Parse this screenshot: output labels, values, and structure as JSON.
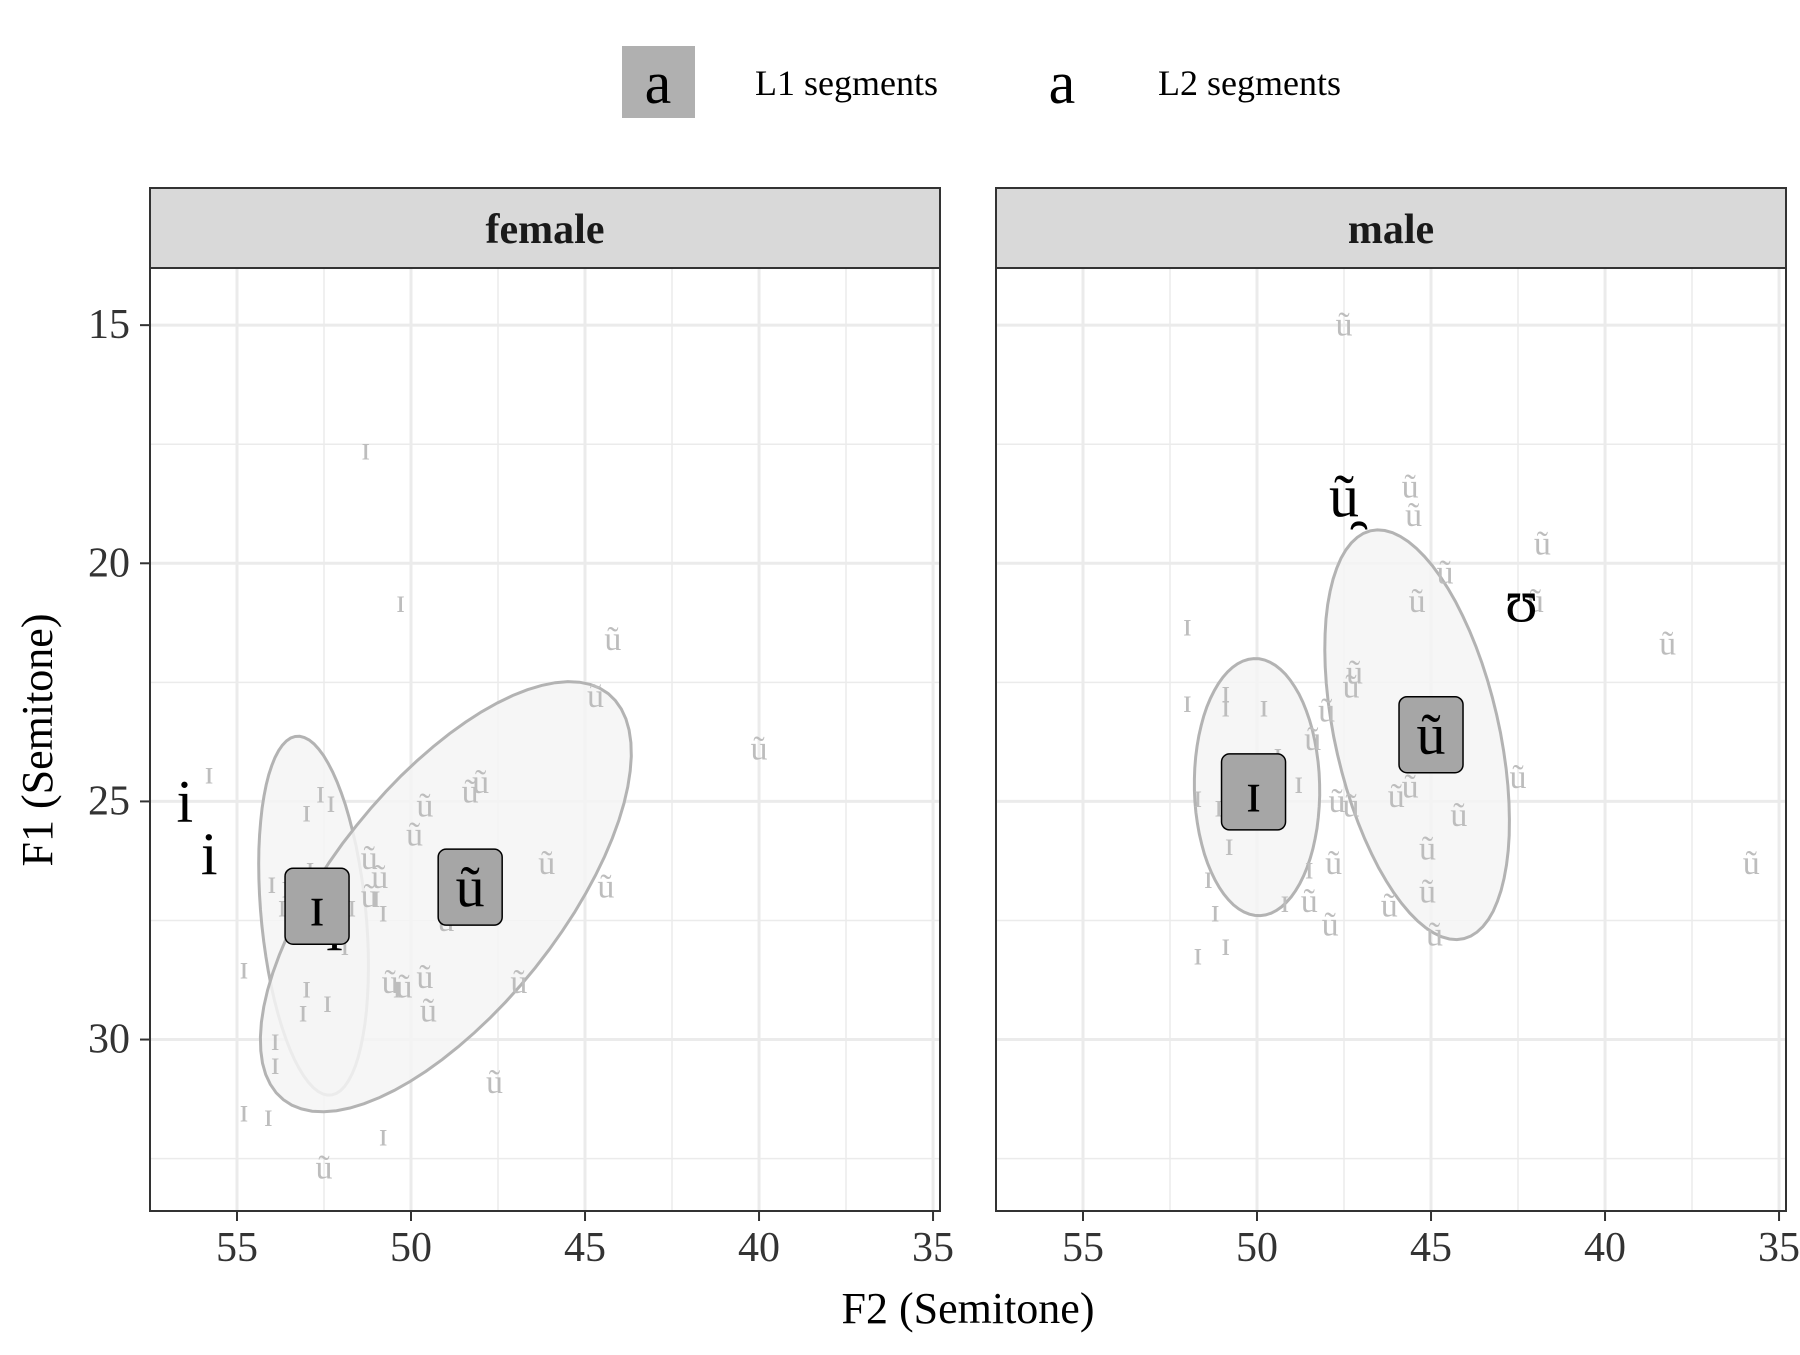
{
  "legend": {
    "key_glyph": "a",
    "l1_label": "L1 segments",
    "l2_label": "L2 segments",
    "l1_fill": "#b0b0b0"
  },
  "colors": {
    "strip_bg": "#d9d9d9",
    "grid": "#ebebeb",
    "points": "#bdbdbd",
    "ellipse_stroke": "#b3b3b3",
    "ellipse_fill": "#f5f5f5",
    "label_fill": "#a6a6a6"
  },
  "chart_data": {
    "type": "scatter",
    "xlabel": "F2 (Semitone)",
    "ylabel": "F1 (Semitone)",
    "x_reversed": true,
    "y_reversed": true,
    "xlim": [
      57.5,
      34.8
    ],
    "ylim": [
      13.8,
      33.6
    ],
    "xticks": [
      55,
      50,
      45,
      40,
      35
    ],
    "yticks": [
      15,
      20,
      25,
      30
    ],
    "grid": true,
    "legend_position": "top",
    "panels": [
      {
        "name": "female",
        "ellipses": [
          {
            "vowel": "ɪ",
            "cx": 52.8,
            "cy": 27.4,
            "rx": 3.8,
            "ry": 1.5,
            "angle": 82
          },
          {
            "vowel": "ũ",
            "cx": 49.0,
            "cy": 27.0,
            "rx": 6.4,
            "ry": 2.8,
            "angle": -38
          }
        ],
        "l1_means": [
          {
            "vowel": "ɪ",
            "x": 52.7,
            "y": 27.2
          },
          {
            "vowel": "ũ",
            "x": 48.3,
            "y": 26.8
          }
        ],
        "l2_means": [
          {
            "vowel": "i",
            "x": 56.5,
            "y": 25.0
          },
          {
            "vowel": "i",
            "x": 55.8,
            "y": 26.1
          },
          {
            "vowel": "i",
            "x": 52.2,
            "y": 27.7
          }
        ],
        "points": [
          {
            "v": "ɪ",
            "x": 51.3,
            "y": 17.6
          },
          {
            "v": "ɪ",
            "x": 50.3,
            "y": 20.8
          },
          {
            "v": "ɪ",
            "x": 55.8,
            "y": 24.4
          },
          {
            "v": "ɪ",
            "x": 53.0,
            "y": 25.2
          },
          {
            "v": "ɪ",
            "x": 52.6,
            "y": 24.8
          },
          {
            "v": "ɪ",
            "x": 52.3,
            "y": 25.0
          },
          {
            "v": "ɪ",
            "x": 54.0,
            "y": 26.7
          },
          {
            "v": "ɪ",
            "x": 53.6,
            "y": 26.8
          },
          {
            "v": "ɪ",
            "x": 52.9,
            "y": 26.4
          },
          {
            "v": "ɪ",
            "x": 53.7,
            "y": 27.2
          },
          {
            "v": "ɪ",
            "x": 51.7,
            "y": 27.2
          },
          {
            "v": "ɪ",
            "x": 51.0,
            "y": 27.0
          },
          {
            "v": "ɪ",
            "x": 50.8,
            "y": 27.3
          },
          {
            "v": "ɪ",
            "x": 54.8,
            "y": 28.5
          },
          {
            "v": "ɪ",
            "x": 51.9,
            "y": 28.0
          },
          {
            "v": "ɪ",
            "x": 53.0,
            "y": 28.9
          },
          {
            "v": "ɪ",
            "x": 52.4,
            "y": 29.2
          },
          {
            "v": "ɪ",
            "x": 53.1,
            "y": 29.4
          },
          {
            "v": "ɪ",
            "x": 50.4,
            "y": 28.9
          },
          {
            "v": "ɪ",
            "x": 53.9,
            "y": 30.0
          },
          {
            "v": "ɪ",
            "x": 53.9,
            "y": 30.5
          },
          {
            "v": "ɪ",
            "x": 54.8,
            "y": 31.5
          },
          {
            "v": "ɪ",
            "x": 54.1,
            "y": 31.6
          },
          {
            "v": "ɪ",
            "x": 50.8,
            "y": 32.0
          },
          {
            "v": "ũ",
            "x": 44.2,
            "y": 21.6
          },
          {
            "v": "ũ",
            "x": 44.7,
            "y": 22.8
          },
          {
            "v": "ũ",
            "x": 40.0,
            "y": 23.9
          },
          {
            "v": "ũ",
            "x": 48.0,
            "y": 24.6
          },
          {
            "v": "ũ",
            "x": 48.3,
            "y": 24.8
          },
          {
            "v": "ũ",
            "x": 49.6,
            "y": 25.1
          },
          {
            "v": "ũ",
            "x": 49.9,
            "y": 25.7
          },
          {
            "v": "ũ",
            "x": 51.2,
            "y": 26.2
          },
          {
            "v": "ũ",
            "x": 50.9,
            "y": 26.6
          },
          {
            "v": "ũ",
            "x": 51.2,
            "y": 27.0
          },
          {
            "v": "ũ",
            "x": 46.1,
            "y": 26.3
          },
          {
            "v": "ũ",
            "x": 44.4,
            "y": 26.8
          },
          {
            "v": "ũ",
            "x": 49.0,
            "y": 27.5
          },
          {
            "v": "ũ",
            "x": 50.6,
            "y": 28.8
          },
          {
            "v": "ũ",
            "x": 50.2,
            "y": 28.9
          },
          {
            "v": "ũ",
            "x": 49.6,
            "y": 28.7
          },
          {
            "v": "ũ",
            "x": 46.9,
            "y": 28.8
          },
          {
            "v": "ũ",
            "x": 49.5,
            "y": 29.4
          },
          {
            "v": "ũ",
            "x": 47.6,
            "y": 30.9
          },
          {
            "v": "ũ",
            "x": 52.5,
            "y": 32.7
          }
        ]
      },
      {
        "name": "male",
        "ellipses": [
          {
            "vowel": "ɪ",
            "cx": 50.0,
            "cy": 24.7,
            "rx": 2.7,
            "ry": 1.8,
            "angle": 88
          },
          {
            "vowel": "ũ",
            "cx": 45.4,
            "cy": 23.6,
            "rx": 4.5,
            "ry": 2.3,
            "angle": 70
          }
        ],
        "l1_means": [
          {
            "vowel": "ɪ",
            "x": 50.1,
            "y": 24.8
          },
          {
            "vowel": "ũ",
            "x": 45.0,
            "y": 23.6
          }
        ],
        "l2_means": [
          {
            "vowel": "ũ̯",
            "x": 47.5,
            "y": 18.6
          },
          {
            "vowel": "ʊ",
            "x": 42.4,
            "y": 20.8
          }
        ],
        "points": [
          {
            "v": "ɪ",
            "x": 52.0,
            "y": 21.3
          },
          {
            "v": "ɪ",
            "x": 52.0,
            "y": 22.9
          },
          {
            "v": "ɪ",
            "x": 50.9,
            "y": 22.7
          },
          {
            "v": "ɪ",
            "x": 50.9,
            "y": 23.0
          },
          {
            "v": "ɪ",
            "x": 49.8,
            "y": 23.0
          },
          {
            "v": "ɪ",
            "x": 49.4,
            "y": 24.0
          },
          {
            "v": "ɪ",
            "x": 51.7,
            "y": 24.9
          },
          {
            "v": "ɪ",
            "x": 51.1,
            "y": 25.1
          },
          {
            "v": "ɪ",
            "x": 50.8,
            "y": 25.9
          },
          {
            "v": "ɪ",
            "x": 51.4,
            "y": 26.6
          },
          {
            "v": "ɪ",
            "x": 51.2,
            "y": 27.3
          },
          {
            "v": "ɪ",
            "x": 49.2,
            "y": 27.1
          },
          {
            "v": "ɪ",
            "x": 48.5,
            "y": 26.4
          },
          {
            "v": "ɪ",
            "x": 50.9,
            "y": 28.0
          },
          {
            "v": "ɪ",
            "x": 51.7,
            "y": 28.2
          },
          {
            "v": "ɪ",
            "x": 48.8,
            "y": 24.6
          },
          {
            "v": "ũ",
            "x": 47.5,
            "y": 15.0
          },
          {
            "v": "ũ",
            "x": 45.6,
            "y": 18.4
          },
          {
            "v": "ũ",
            "x": 45.5,
            "y": 19.0
          },
          {
            "v": "ũ",
            "x": 41.8,
            "y": 19.6
          },
          {
            "v": "ũ",
            "x": 44.6,
            "y": 20.2
          },
          {
            "v": "ũ",
            "x": 45.4,
            "y": 20.8
          },
          {
            "v": "ũ",
            "x": 42.0,
            "y": 20.8
          },
          {
            "v": "ũ",
            "x": 38.2,
            "y": 21.7
          },
          {
            "v": "ũ",
            "x": 47.2,
            "y": 22.3
          },
          {
            "v": "ũ",
            "x": 47.3,
            "y": 22.6
          },
          {
            "v": "ũ",
            "x": 48.0,
            "y": 23.1
          },
          {
            "v": "ũ",
            "x": 48.4,
            "y": 23.7
          },
          {
            "v": "ũ",
            "x": 42.5,
            "y": 24.5
          },
          {
            "v": "ũ",
            "x": 47.7,
            "y": 25.0
          },
          {
            "v": "ũ",
            "x": 47.3,
            "y": 25.1
          },
          {
            "v": "ũ",
            "x": 46.0,
            "y": 24.9
          },
          {
            "v": "ũ",
            "x": 45.6,
            "y": 24.7
          },
          {
            "v": "ũ",
            "x": 44.2,
            "y": 25.3
          },
          {
            "v": "ũ",
            "x": 45.1,
            "y": 26.0
          },
          {
            "v": "ũ",
            "x": 47.8,
            "y": 26.3
          },
          {
            "v": "ũ",
            "x": 45.1,
            "y": 26.9
          },
          {
            "v": "ũ",
            "x": 46.2,
            "y": 27.2
          },
          {
            "v": "ũ",
            "x": 48.5,
            "y": 27.1
          },
          {
            "v": "ũ",
            "x": 47.9,
            "y": 27.6
          },
          {
            "v": "ũ",
            "x": 44.9,
            "y": 27.8
          },
          {
            "v": "ũ",
            "x": 35.8,
            "y": 26.3
          }
        ]
      }
    ]
  }
}
